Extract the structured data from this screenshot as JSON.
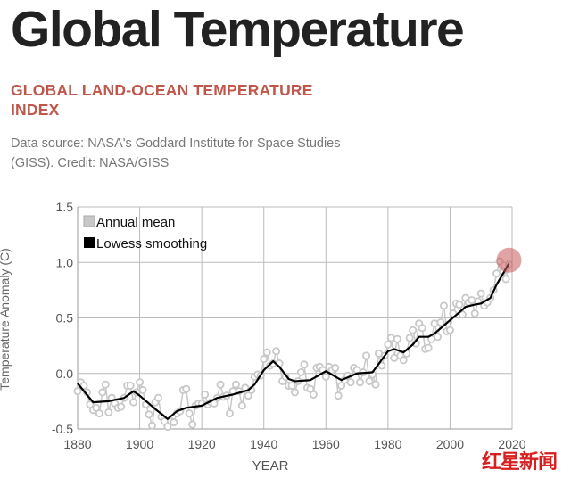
{
  "title": "Global Temperature",
  "subtitle": "GLOBAL LAND-OCEAN TEMPERATURE INDEX",
  "source": "Data source: NASA's Goddard Institute for Space Studies (GISS). Credit: NASA/GISS",
  "watermark": "红星新闻",
  "chart_data": {
    "type": "line",
    "xlabel": "YEAR",
    "ylabel": "Temperature Anomaly (C)",
    "xlim": [
      1880,
      2020
    ],
    "ylim": [
      -0.5,
      1.5
    ],
    "xticks": [
      "1880",
      "1900",
      "1920",
      "1940",
      "1960",
      "1980",
      "2000",
      "2020"
    ],
    "yticks": [
      "1.5",
      "1.0",
      "0.5",
      "0.0",
      "-0.5"
    ],
    "grid": true,
    "legend_position": "top-left",
    "highlight": {
      "x": 2019,
      "y": 1.02,
      "color": "#c85a5a"
    },
    "series": [
      {
        "name": "Annual mean",
        "color": "#c8c8c8",
        "x_start": 1880,
        "values": [
          -0.16,
          -0.08,
          -0.11,
          -0.17,
          -0.28,
          -0.33,
          -0.31,
          -0.36,
          -0.17,
          -0.1,
          -0.35,
          -0.22,
          -0.27,
          -0.31,
          -0.3,
          -0.22,
          -0.11,
          -0.11,
          -0.26,
          -0.17,
          -0.08,
          -0.15,
          -0.28,
          -0.37,
          -0.47,
          -0.26,
          -0.22,
          -0.39,
          -0.43,
          -0.48,
          -0.43,
          -0.44,
          -0.36,
          -0.34,
          -0.15,
          -0.14,
          -0.36,
          -0.46,
          -0.29,
          -0.27,
          -0.27,
          -0.19,
          -0.28,
          -0.26,
          -0.27,
          -0.22,
          -0.1,
          -0.21,
          -0.2,
          -0.36,
          -0.16,
          -0.1,
          -0.16,
          -0.29,
          -0.13,
          -0.2,
          -0.15,
          -0.03,
          -0.01,
          -0.02,
          0.13,
          0.19,
          0.07,
          0.09,
          0.2,
          0.09,
          -0.07,
          -0.03,
          -0.11,
          -0.11,
          -0.17,
          -0.07,
          0.01,
          0.08,
          -0.13,
          -0.14,
          -0.19,
          0.05,
          0.06,
          0.03,
          -0.03,
          0.06,
          0.03,
          0.05,
          -0.2,
          -0.11,
          -0.06,
          -0.02,
          -0.08,
          0.05,
          0.03,
          -0.08,
          0.01,
          0.16,
          -0.07,
          -0.01,
          -0.1,
          0.18,
          0.07,
          0.16,
          0.26,
          0.32,
          0.14,
          0.31,
          0.16,
          0.12,
          0.18,
          0.32,
          0.39,
          0.27,
          0.45,
          0.41,
          0.22,
          0.23,
          0.31,
          0.45,
          0.33,
          0.46,
          0.61,
          0.38,
          0.39,
          0.54,
          0.63,
          0.62,
          0.53,
          0.68,
          0.64,
          0.66,
          0.54,
          0.65,
          0.72,
          0.61,
          0.64,
          0.68,
          0.75,
          0.9,
          1.01,
          0.92,
          0.85,
          0.98
        ]
      },
      {
        "name": "Lowess smoothing",
        "color": "#000000",
        "x": [
          1880,
          1885,
          1890,
          1895,
          1898,
          1900,
          1905,
          1909,
          1912,
          1915,
          1920,
          1925,
          1930,
          1935,
          1937,
          1940,
          1943,
          1945,
          1948,
          1950,
          1955,
          1960,
          1965,
          1970,
          1975,
          1980,
          1982,
          1985,
          1988,
          1990,
          1993,
          1995,
          2000,
          2003,
          2005,
          2008,
          2010,
          2013,
          2015,
          2019
        ],
        "y": [
          -0.09,
          -0.26,
          -0.25,
          -0.22,
          -0.16,
          -0.2,
          -0.32,
          -0.41,
          -0.34,
          -0.31,
          -0.29,
          -0.22,
          -0.19,
          -0.15,
          -0.1,
          0.03,
          0.11,
          0.06,
          -0.05,
          -0.07,
          -0.06,
          0.02,
          -0.06,
          0.0,
          0.01,
          0.2,
          0.22,
          0.19,
          0.26,
          0.33,
          0.33,
          0.36,
          0.48,
          0.55,
          0.6,
          0.62,
          0.63,
          0.68,
          0.8,
          0.99
        ]
      }
    ]
  }
}
